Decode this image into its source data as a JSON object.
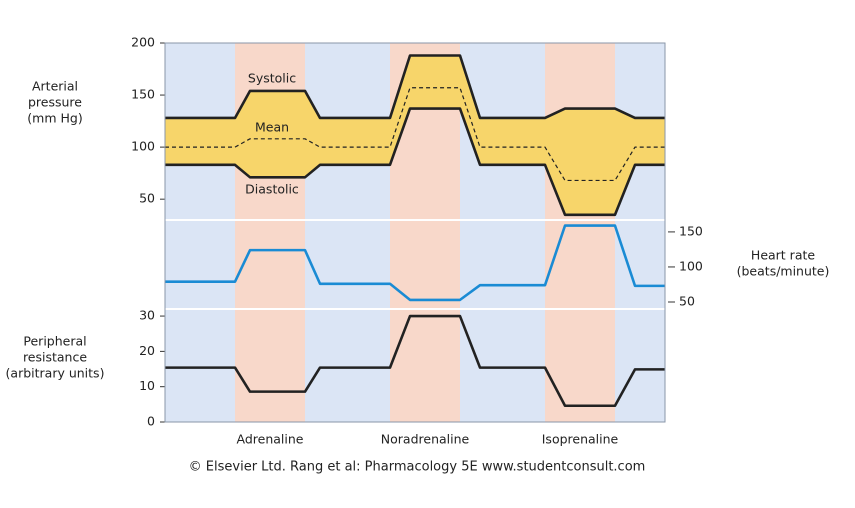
{
  "chart_data": [
    {
      "type": "line",
      "ylabel": [
        "Arterial",
        "pressure",
        "(mm Hg)"
      ],
      "yaxis": "left",
      "ylim": [
        30,
        200
      ],
      "yticks": [
        50,
        100,
        150,
        200
      ],
      "x": [
        0,
        14,
        17,
        28,
        31,
        45,
        49,
        59,
        63,
        76,
        80,
        90,
        94,
        100
      ],
      "xlim": [
        0,
        100
      ],
      "fill_between": [
        0,
        2
      ],
      "fill_color": "#f7d56a",
      "series": [
        {
          "name": "Systolic",
          "color": "#222222",
          "dash": false,
          "values": [
            128,
            128,
            154,
            154,
            128,
            128,
            188,
            188,
            128,
            128,
            137,
            137,
            128,
            128
          ]
        },
        {
          "name": "Mean",
          "color": "#222222",
          "dash": true,
          "values": [
            100,
            100,
            108,
            108,
            100,
            100,
            157,
            157,
            100,
            100,
            68,
            68,
            100,
            100
          ]
        },
        {
          "name": "Diastolic",
          "color": "#222222",
          "dash": false,
          "values": [
            83,
            83,
            71,
            71,
            83,
            83,
            137,
            137,
            83,
            83,
            35,
            35,
            83,
            83
          ]
        }
      ]
    },
    {
      "type": "line",
      "ylabel": [
        "Heart rate",
        "(beats/minute)"
      ],
      "yaxis": "right",
      "ylim": [
        40,
        167
      ],
      "yticks": [
        50,
        100,
        150
      ],
      "x": [
        0,
        14,
        17,
        28,
        31,
        45,
        49,
        59,
        63,
        76,
        80,
        90,
        94,
        100
      ],
      "xlim": [
        0,
        100
      ],
      "series": [
        {
          "color": "#1a8bd4",
          "dash": false,
          "values": [
            79,
            79,
            124,
            124,
            76,
            76,
            53,
            53,
            74,
            74,
            159,
            159,
            73,
            73
          ]
        }
      ]
    },
    {
      "type": "line",
      "ylabel": [
        "Peripheral",
        "resistance",
        "(arbitrary units)"
      ],
      "yaxis": "left",
      "ylim": [
        0,
        32
      ],
      "yticks": [
        0,
        10,
        20,
        30
      ],
      "x": [
        0,
        14,
        17,
        28,
        31,
        45,
        49,
        59,
        63,
        76,
        80,
        90,
        94,
        100
      ],
      "xlim": [
        0,
        100
      ],
      "bands": [
        {
          "label": "Adrenaline",
          "from": 14,
          "to": 28
        },
        {
          "label": "Noradrenaline",
          "from": 45,
          "to": 59
        },
        {
          "label": "Isoprenaline",
          "from": 76,
          "to": 90
        }
      ],
      "band_color": "#f8d8ca",
      "background_color": "#dbe5f5",
      "series": [
        {
          "color": "#222222",
          "dash": false,
          "values": [
            15.4,
            15.4,
            8.6,
            8.6,
            15.4,
            15.4,
            30,
            30,
            15.4,
            15.4,
            4.6,
            4.6,
            14.9,
            14.9
          ]
        }
      ]
    }
  ],
  "caption": "© Elsevier Ltd. Rang et al: Pharmacology 5E www.studentconsult.com"
}
